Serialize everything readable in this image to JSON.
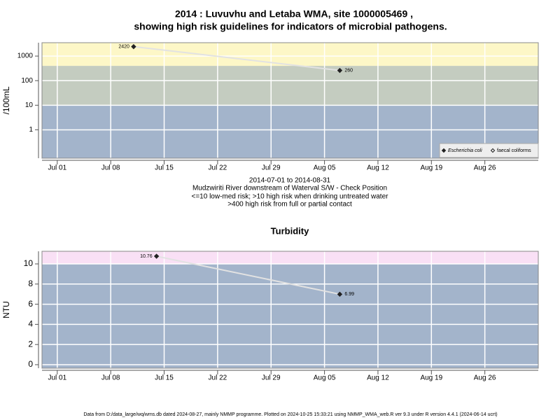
{
  "title": [
    "2014 : Luvuvhu and Letaba WMA, site 1000005469 ,",
    "showing high risk guidelines for indicators of microbial pathogens."
  ],
  "chart_data": [
    {
      "type": "line",
      "log_y": true,
      "ylabel": "/100mL",
      "x": [
        "Jul 11",
        "Aug 07"
      ],
      "xlim": [
        "Jun 29",
        "Sep 02"
      ],
      "xticks": [
        "Jul 01",
        "Jul 08",
        "Jul 15",
        "Jul 22",
        "Jul 29",
        "Aug 05",
        "Aug 12",
        "Aug 19",
        "Aug 26"
      ],
      "ylim": [
        0.07,
        3500
      ],
      "yticks": [
        1,
        10,
        100,
        1000
      ],
      "grid": true,
      "thresholds": [
        10,
        400
      ],
      "band_colors": [
        "#a3b4cb",
        "#c4ccc0",
        "#fdf7c7"
      ],
      "line_color": "#e2e2e2",
      "legend": "bottom-right",
      "series": [
        {
          "name": "Escherichia coli",
          "color": "#222222",
          "marker": "filled",
          "values": [
            2420,
            260
          ]
        },
        {
          "name": "faecal coliforms",
          "color": "#222222",
          "marker": "open",
          "values": [
            null,
            null
          ]
        }
      ],
      "notes": [
        "2014-07-01 to 2014-08-31",
        "Mudzwiriti River downstream of Waterval S/W - Check Position",
        "<=10 low-med risk; >10 high risk when drinking untreated water",
        ">400 high risk from full or partial contact"
      ]
    },
    {
      "type": "line",
      "log_y": false,
      "title": "Turbidity",
      "ylabel": "NTU",
      "x": [
        "Jul 14",
        "Aug 07"
      ],
      "xlim": [
        "Jun 29",
        "Sep 02"
      ],
      "xticks": [
        "Jul 01",
        "Jul 08",
        "Jul 15",
        "Jul 22",
        "Jul 29",
        "Aug 05",
        "Aug 12",
        "Aug 19",
        "Aug 26"
      ],
      "ylim": [
        -0.35,
        11.25
      ],
      "yticks": [
        0,
        2,
        4,
        6,
        8,
        10
      ],
      "grid": true,
      "thresholds": [
        10
      ],
      "band_colors": [
        "#a3b4cb",
        "#f9e0f5"
      ],
      "line_color": "#e2e2e2",
      "series": [
        {
          "color": "#222222",
          "marker": "filled",
          "values": [
            10.76,
            6.99
          ]
        }
      ]
    }
  ],
  "footer": "Data from D:/data_large/wq/wms.db dated 2024-08-27, mainly NMMP programme. Plotted on 2024-10-25 15:33:21 using NMMP_WMA_web.R ver 9.3 under R version 4.4.1 (2024-06-14 ucrt)"
}
